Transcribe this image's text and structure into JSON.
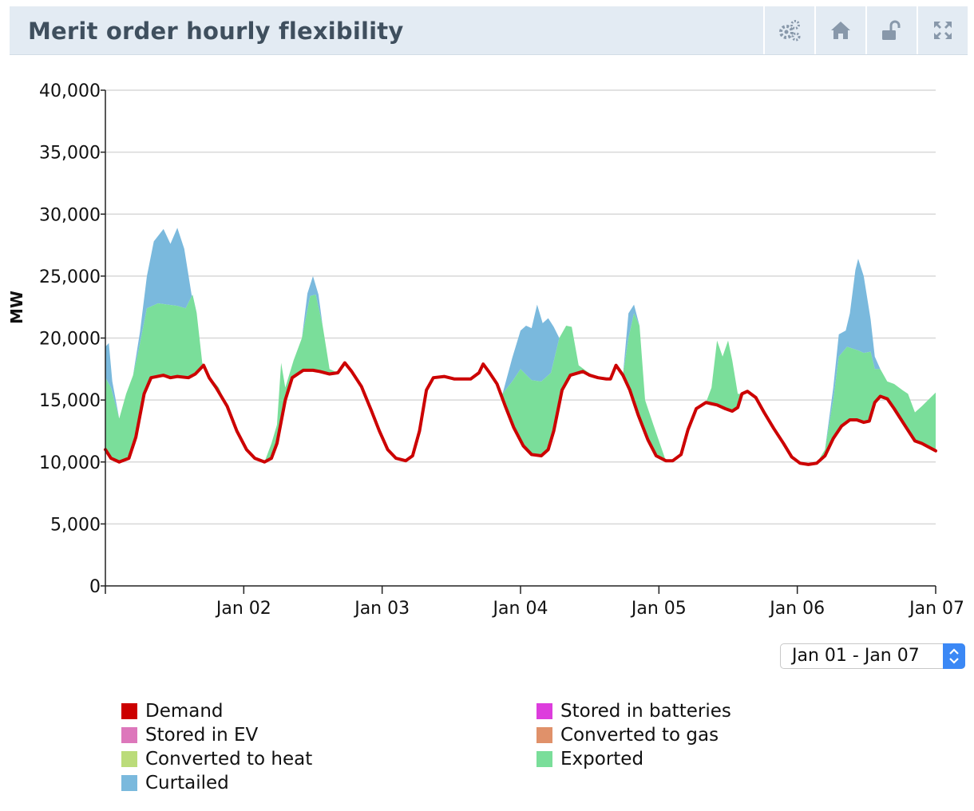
{
  "header": {
    "title": "Merit order hourly flexibility",
    "buttons": [
      {
        "name": "settings-button",
        "icon": "gears-icon"
      },
      {
        "name": "home-button",
        "icon": "home-icon"
      },
      {
        "name": "lock-button",
        "icon": "unlock-icon"
      },
      {
        "name": "fullscreen-button",
        "icon": "expand-icon"
      }
    ]
  },
  "range_select": {
    "value": "Jan 01 - Jan 07"
  },
  "chart_data": {
    "type": "area",
    "ylabel": "MW",
    "ylim": [
      0,
      40000
    ],
    "yticks": [
      "0",
      "5,000",
      "10,000",
      "15,000",
      "20,000",
      "25,000",
      "30,000",
      "35,000",
      "40,000"
    ],
    "xlim": [
      0,
      6
    ],
    "xticks": [
      "Jan 02",
      "Jan 03",
      "Jan 04",
      "Jan 05",
      "Jan 06",
      "Jan 07"
    ],
    "grid": true,
    "legend_position": "bottom",
    "colors": {
      "Demand": "#cc0000",
      "Stored in batteries": "#dd3ddd",
      "Stored in EV": "#dd77bb",
      "Converted to gas": "#e0916a",
      "Converted to heat": "#bbdc7a",
      "Exported": "#7ade9a",
      "Curtailed": "#7ab9dd"
    },
    "legend": [
      "Demand",
      "Stored in batteries",
      "Stored in EV",
      "Converted to gas",
      "Converted to heat",
      "Exported",
      "Curtailed"
    ],
    "demand": [
      [
        0,
        11000
      ],
      [
        0.04,
        10300
      ],
      [
        0.1,
        10000
      ],
      [
        0.17,
        10300
      ],
      [
        0.22,
        12000
      ],
      [
        0.28,
        15500
      ],
      [
        0.33,
        16800
      ],
      [
        0.42,
        17000
      ],
      [
        0.47,
        16800
      ],
      [
        0.52,
        16900
      ],
      [
        0.6,
        16800
      ],
      [
        0.65,
        17100
      ],
      [
        0.71,
        17800
      ],
      [
        0.75,
        16800
      ],
      [
        0.8,
        16000
      ],
      [
        0.88,
        14500
      ],
      [
        0.95,
        12500
      ],
      [
        1.02,
        11000
      ],
      [
        1.08,
        10300
      ],
      [
        1.15,
        10000
      ],
      [
        1.2,
        10300
      ],
      [
        1.24,
        11500
      ],
      [
        1.3,
        15000
      ],
      [
        1.35,
        16800
      ],
      [
        1.43,
        17400
      ],
      [
        1.5,
        17400
      ],
      [
        1.55,
        17300
      ],
      [
        1.62,
        17100
      ],
      [
        1.68,
        17200
      ],
      [
        1.73,
        18000
      ],
      [
        1.78,
        17300
      ],
      [
        1.85,
        16100
      ],
      [
        1.92,
        14200
      ],
      [
        1.98,
        12500
      ],
      [
        2.04,
        11000
      ],
      [
        2.1,
        10300
      ],
      [
        2.17,
        10100
      ],
      [
        2.22,
        10500
      ],
      [
        2.27,
        12500
      ],
      [
        2.32,
        15800
      ],
      [
        2.37,
        16800
      ],
      [
        2.45,
        16900
      ],
      [
        2.52,
        16700
      ],
      [
        2.58,
        16700
      ],
      [
        2.64,
        16700
      ],
      [
        2.7,
        17200
      ],
      [
        2.73,
        17900
      ],
      [
        2.77,
        17300
      ],
      [
        2.83,
        16300
      ],
      [
        2.89,
        14500
      ],
      [
        2.95,
        12800
      ],
      [
        3.02,
        11300
      ],
      [
        3.08,
        10600
      ],
      [
        3.15,
        10500
      ],
      [
        3.2,
        11000
      ],
      [
        3.24,
        12500
      ],
      [
        3.3,
        15800
      ],
      [
        3.36,
        17000
      ],
      [
        3.45,
        17300
      ],
      [
        3.5,
        17000
      ],
      [
        3.56,
        16800
      ],
      [
        3.62,
        16700
      ],
      [
        3.65,
        16700
      ],
      [
        3.69,
        17800
      ],
      [
        3.74,
        17000
      ],
      [
        3.79,
        15800
      ],
      [
        3.85,
        13800
      ],
      [
        3.92,
        11800
      ],
      [
        3.98,
        10500
      ],
      [
        4.05,
        10100
      ],
      [
        4.1,
        10100
      ],
      [
        4.16,
        10600
      ],
      [
        4.21,
        12600
      ],
      [
        4.27,
        14300
      ],
      [
        4.34,
        14800
      ],
      [
        4.42,
        14600
      ],
      [
        4.48,
        14300
      ],
      [
        4.53,
        14100
      ],
      [
        4.57,
        14400
      ],
      [
        4.6,
        15500
      ],
      [
        4.64,
        15700
      ],
      [
        4.7,
        15200
      ],
      [
        4.76,
        14000
      ],
      [
        4.83,
        12700
      ],
      [
        4.9,
        11500
      ],
      [
        4.96,
        10400
      ],
      [
        5.02,
        9900
      ],
      [
        5.08,
        9800
      ],
      [
        5.14,
        9900
      ],
      [
        5.2,
        10500
      ],
      [
        5.26,
        11900
      ],
      [
        5.32,
        12900
      ],
      [
        5.38,
        13400
      ],
      [
        5.43,
        13400
      ],
      [
        5.48,
        13200
      ],
      [
        5.52,
        13300
      ],
      [
        5.56,
        14800
      ],
      [
        5.6,
        15300
      ],
      [
        5.65,
        15100
      ],
      [
        5.7,
        14300
      ],
      [
        5.78,
        12900
      ],
      [
        5.85,
        11700
      ],
      [
        5.9,
        11500
      ],
      [
        6.0,
        10900
      ]
    ],
    "exported_top": [
      [
        0,
        16800
      ],
      [
        0.04,
        16000
      ],
      [
        0.1,
        13500
      ],
      [
        0.15,
        15500
      ],
      [
        0.2,
        17000
      ],
      [
        0.24,
        19000
      ],
      [
        0.3,
        22400
      ],
      [
        0.38,
        22800
      ],
      [
        0.45,
        22700
      ],
      [
        0.52,
        22600
      ],
      [
        0.58,
        22400
      ],
      [
        0.63,
        23500
      ],
      [
        0.66,
        22000
      ],
      [
        0.7,
        18000
      ],
      [
        0.76,
        16800
      ],
      [
        0.82,
        16000
      ],
      [
        0.88,
        14500
      ],
      [
        0.95,
        12500
      ],
      [
        1.02,
        11000
      ],
      [
        1.08,
        10300
      ],
      [
        1.15,
        10000
      ],
      [
        1.2,
        11500
      ],
      [
        1.24,
        13000
      ],
      [
        1.27,
        18000
      ],
      [
        1.3,
        16000
      ],
      [
        1.36,
        18200
      ],
      [
        1.42,
        20000
      ],
      [
        1.48,
        23400
      ],
      [
        1.52,
        23500
      ],
      [
        1.57,
        21000
      ],
      [
        1.62,
        17500
      ],
      [
        1.68,
        17200
      ],
      [
        1.73,
        18000
      ],
      [
        1.78,
        17300
      ],
      [
        1.85,
        16100
      ],
      [
        1.92,
        14200
      ],
      [
        1.98,
        12500
      ],
      [
        2.04,
        11000
      ],
      [
        2.1,
        10300
      ],
      [
        2.17,
        10100
      ],
      [
        2.22,
        10500
      ],
      [
        2.27,
        12500
      ],
      [
        2.32,
        15800
      ],
      [
        2.37,
        16800
      ],
      [
        2.45,
        16900
      ],
      [
        2.52,
        16700
      ],
      [
        2.58,
        16700
      ],
      [
        2.64,
        16700
      ],
      [
        2.7,
        17200
      ],
      [
        2.73,
        17900
      ],
      [
        2.77,
        17300
      ],
      [
        2.83,
        16300
      ],
      [
        2.87,
        15500
      ],
      [
        2.94,
        16500
      ],
      [
        3.0,
        17500
      ],
      [
        3.08,
        16600
      ],
      [
        3.15,
        16500
      ],
      [
        3.22,
        17200
      ],
      [
        3.28,
        20000
      ],
      [
        3.33,
        21000
      ],
      [
        3.37,
        20900
      ],
      [
        3.42,
        17800
      ],
      [
        3.48,
        17300
      ],
      [
        3.55,
        16800
      ],
      [
        3.62,
        16700
      ],
      [
        3.65,
        16700
      ],
      [
        3.69,
        17800
      ],
      [
        3.74,
        17000
      ],
      [
        3.78,
        20000
      ],
      [
        3.82,
        22000
      ],
      [
        3.86,
        21000
      ],
      [
        3.9,
        15000
      ],
      [
        3.96,
        13000
      ],
      [
        4.05,
        10100
      ],
      [
        4.1,
        10100
      ],
      [
        4.16,
        10600
      ],
      [
        4.21,
        12600
      ],
      [
        4.27,
        14300
      ],
      [
        4.34,
        14800
      ],
      [
        4.38,
        16000
      ],
      [
        4.42,
        19800
      ],
      [
        4.46,
        18500
      ],
      [
        4.5,
        19800
      ],
      [
        4.53,
        18200
      ],
      [
        4.57,
        15500
      ],
      [
        4.6,
        15500
      ],
      [
        4.64,
        15700
      ],
      [
        4.7,
        15200
      ],
      [
        4.76,
        14000
      ],
      [
        4.83,
        12700
      ],
      [
        4.9,
        11500
      ],
      [
        4.96,
        10400
      ],
      [
        5.02,
        9900
      ],
      [
        5.08,
        9800
      ],
      [
        5.14,
        9900
      ],
      [
        5.2,
        11000
      ],
      [
        5.26,
        15000
      ],
      [
        5.3,
        18500
      ],
      [
        5.36,
        19300
      ],
      [
        5.44,
        19000
      ],
      [
        5.48,
        18800
      ],
      [
        5.53,
        18900
      ],
      [
        5.56,
        17500
      ],
      [
        5.6,
        17500
      ],
      [
        5.65,
        16500
      ],
      [
        5.7,
        16300
      ],
      [
        5.76,
        15800
      ],
      [
        5.8,
        15500
      ],
      [
        5.85,
        14000
      ],
      [
        5.9,
        14500
      ],
      [
        6.0,
        15600
      ]
    ],
    "curtailed_top": [
      [
        0,
        19300
      ],
      [
        0.025,
        19600
      ],
      [
        0.05,
        16500
      ],
      [
        0.1,
        13500
      ],
      [
        0.15,
        15500
      ],
      [
        0.2,
        17000
      ],
      [
        0.25,
        20500
      ],
      [
        0.3,
        25000
      ],
      [
        0.35,
        27800
      ],
      [
        0.42,
        28800
      ],
      [
        0.47,
        27600
      ],
      [
        0.52,
        28900
      ],
      [
        0.57,
        27200
      ],
      [
        0.63,
        23000
      ],
      [
        0.66,
        22000
      ],
      [
        0.7,
        18000
      ],
      [
        0.76,
        16800
      ],
      [
        0.82,
        16000
      ],
      [
        0.88,
        14500
      ],
      [
        0.95,
        12500
      ],
      [
        1.02,
        11000
      ],
      [
        1.08,
        10300
      ],
      [
        1.15,
        10000
      ],
      [
        1.2,
        11500
      ],
      [
        1.24,
        13000
      ],
      [
        1.27,
        18000
      ],
      [
        1.3,
        16000
      ],
      [
        1.36,
        18200
      ],
      [
        1.42,
        20000
      ],
      [
        1.46,
        23600
      ],
      [
        1.5,
        25000
      ],
      [
        1.54,
        23500
      ],
      [
        1.57,
        21000
      ],
      [
        1.62,
        17500
      ],
      [
        1.68,
        17200
      ],
      [
        1.73,
        18000
      ],
      [
        1.78,
        17300
      ],
      [
        1.85,
        16100
      ],
      [
        1.92,
        14200
      ],
      [
        1.98,
        12500
      ],
      [
        2.04,
        11000
      ],
      [
        2.1,
        10300
      ],
      [
        2.17,
        10100
      ],
      [
        2.22,
        10500
      ],
      [
        2.27,
        12500
      ],
      [
        2.32,
        15800
      ],
      [
        2.37,
        16800
      ],
      [
        2.45,
        16900
      ],
      [
        2.52,
        16700
      ],
      [
        2.58,
        16700
      ],
      [
        2.64,
        16700
      ],
      [
        2.7,
        17200
      ],
      [
        2.73,
        17900
      ],
      [
        2.77,
        17300
      ],
      [
        2.83,
        16300
      ],
      [
        2.87,
        15500
      ],
      [
        2.94,
        18400
      ],
      [
        3.0,
        20600
      ],
      [
        3.04,
        21000
      ],
      [
        3.08,
        20800
      ],
      [
        3.12,
        22700
      ],
      [
        3.16,
        21200
      ],
      [
        3.2,
        21600
      ],
      [
        3.24,
        20900
      ],
      [
        3.28,
        20000
      ],
      [
        3.33,
        21000
      ],
      [
        3.37,
        20900
      ],
      [
        3.42,
        17800
      ],
      [
        3.48,
        17300
      ],
      [
        3.55,
        16800
      ],
      [
        3.62,
        16700
      ],
      [
        3.65,
        16700
      ],
      [
        3.69,
        17800
      ],
      [
        3.74,
        17000
      ],
      [
        3.78,
        22000
      ],
      [
        3.82,
        22700
      ],
      [
        3.86,
        21000
      ],
      [
        3.9,
        15000
      ],
      [
        3.96,
        13000
      ],
      [
        4.05,
        10100
      ],
      [
        4.1,
        10100
      ],
      [
        4.16,
        10600
      ],
      [
        4.21,
        12600
      ],
      [
        4.27,
        14300
      ],
      [
        4.34,
        14800
      ],
      [
        4.38,
        16000
      ],
      [
        4.42,
        19800
      ],
      [
        4.46,
        18500
      ],
      [
        4.5,
        19800
      ],
      [
        4.53,
        18200
      ],
      [
        4.57,
        15500
      ],
      [
        4.6,
        15500
      ],
      [
        4.64,
        15700
      ],
      [
        4.7,
        15200
      ],
      [
        4.76,
        14000
      ],
      [
        4.83,
        12700
      ],
      [
        4.9,
        11500
      ],
      [
        4.96,
        10400
      ],
      [
        5.02,
        9900
      ],
      [
        5.08,
        9800
      ],
      [
        5.14,
        9900
      ],
      [
        5.2,
        11000
      ],
      [
        5.26,
        16000
      ],
      [
        5.3,
        20300
      ],
      [
        5.35,
        20600
      ],
      [
        5.38,
        22000
      ],
      [
        5.42,
        25500
      ],
      [
        5.44,
        26400
      ],
      [
        5.48,
        25000
      ],
      [
        5.53,
        21500
      ],
      [
        5.56,
        18500
      ],
      [
        5.6,
        17500
      ],
      [
        5.65,
        16500
      ],
      [
        5.7,
        16300
      ],
      [
        5.76,
        15800
      ],
      [
        5.8,
        15500
      ],
      [
        5.85,
        14000
      ],
      [
        5.9,
        14500
      ],
      [
        6.0,
        15600
      ]
    ]
  }
}
